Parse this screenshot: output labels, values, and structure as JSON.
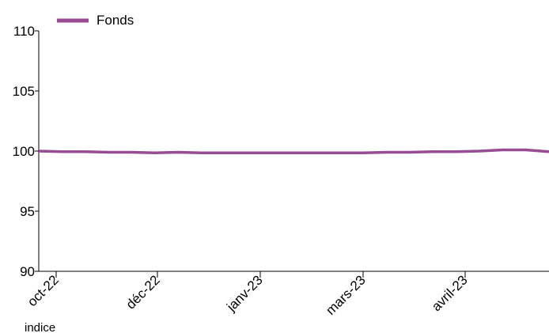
{
  "chart_data": {
    "type": "line",
    "title": "",
    "xlabel": "",
    "ylabel": "",
    "ylim": [
      90,
      110
    ],
    "y_ticks": [
      "90",
      "95",
      "100",
      "105",
      "110"
    ],
    "x_tick_labels": [
      "oct-22",
      "déc-22",
      "janv-23",
      "mars-23",
      "avril-23"
    ],
    "legend": {
      "placement": "top-left",
      "entries": [
        "Fonds"
      ]
    },
    "footnote": "indice",
    "grid": false,
    "series": [
      {
        "name": "Fonds",
        "color": "#984c94",
        "values": [
          100.0,
          99.95,
          99.95,
          99.9,
          99.9,
          99.85,
          99.9,
          99.85,
          99.85,
          99.85,
          99.85,
          99.85,
          99.85,
          99.85,
          99.85,
          99.9,
          99.9,
          99.95,
          99.95,
          100.0,
          100.1,
          100.1,
          99.95
        ]
      }
    ]
  }
}
